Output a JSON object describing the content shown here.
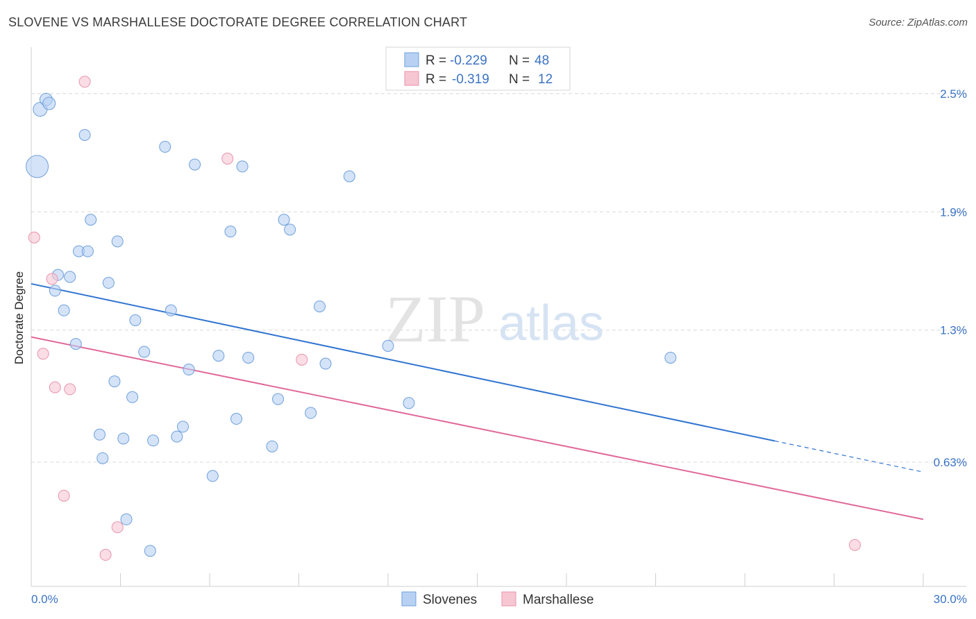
{
  "header": {
    "title": "SLOVENE VS MARSHALLESE DOCTORATE DEGREE CORRELATION CHART",
    "source": "Source: ZipAtlas.com"
  },
  "watermark": {
    "part1": "ZIP",
    "part2": "atlas"
  },
  "legend": {
    "rows": [
      {
        "r_label": "R =",
        "r_value": "-0.229",
        "n_label": "N =",
        "n_value": "48"
      },
      {
        "r_label": "R =",
        "r_value": "-0.319",
        "n_label": "N =",
        "n_value": "12"
      }
    ]
  },
  "colors": {
    "slovenes_fill": "#b8d1f3",
    "slovenes_stroke": "#6e9fdb",
    "slovenes_line": "#2f74d0",
    "marshallese_fill": "#f7c6d3",
    "marshallese_stroke": "#e993ad",
    "marshallese_line": "#e0689a",
    "grid": "#d8d8d8",
    "tick_label": "#3b73c4"
  },
  "chart_data": {
    "type": "scatter",
    "title": "SLOVENE VS MARSHALLESE DOCTORATE DEGREE CORRELATION CHART",
    "xlabel": "",
    "ylabel": "Doctorate Degree",
    "xlim": [
      0,
      30
    ],
    "ylim": [
      0,
      2.7
    ],
    "x_tick_labels": [
      "0.0%",
      "30.0%"
    ],
    "y_ticks": [
      0.63,
      1.3,
      1.9,
      2.5
    ],
    "y_tick_labels": [
      "0.63%",
      "1.3%",
      "1.9%",
      "2.5%"
    ],
    "legend_entries": [
      "Slovenes",
      "Marshallese"
    ],
    "series": [
      {
        "name": "Slovenes",
        "points": [
          [
            0.2,
            2.13,
            16
          ],
          [
            0.3,
            2.42,
            10
          ],
          [
            0.5,
            2.47,
            9
          ],
          [
            0.6,
            2.45,
            9
          ],
          [
            1.8,
            2.29,
            8
          ],
          [
            5.5,
            2.14,
            8
          ],
          [
            4.5,
            2.23,
            8
          ],
          [
            7.1,
            2.13,
            8
          ],
          [
            10.7,
            2.08,
            8
          ],
          [
            2.0,
            1.86,
            8
          ],
          [
            2.9,
            1.75,
            8
          ],
          [
            1.6,
            1.7,
            8
          ],
          [
            1.9,
            1.7,
            8
          ],
          [
            6.7,
            1.8,
            8
          ],
          [
            8.5,
            1.86,
            8
          ],
          [
            8.7,
            1.81,
            8
          ],
          [
            0.9,
            1.58,
            8
          ],
          [
            1.3,
            1.57,
            8
          ],
          [
            2.6,
            1.54,
            8
          ],
          [
            0.8,
            1.5,
            8
          ],
          [
            1.1,
            1.4,
            8
          ],
          [
            4.7,
            1.4,
            8
          ],
          [
            3.5,
            1.35,
            8
          ],
          [
            9.7,
            1.42,
            8
          ],
          [
            1.5,
            1.23,
            8
          ],
          [
            3.8,
            1.19,
            8
          ],
          [
            6.3,
            1.17,
            8
          ],
          [
            7.3,
            1.16,
            8
          ],
          [
            9.9,
            1.13,
            8
          ],
          [
            12.0,
            1.22,
            8
          ],
          [
            21.5,
            1.16,
            8
          ],
          [
            5.3,
            1.1,
            8
          ],
          [
            2.8,
            1.04,
            8
          ],
          [
            3.4,
            0.96,
            8
          ],
          [
            8.3,
            0.95,
            8
          ],
          [
            12.7,
            0.93,
            8
          ],
          [
            9.4,
            0.88,
            8
          ],
          [
            6.9,
            0.85,
            8
          ],
          [
            5.1,
            0.81,
            8
          ],
          [
            2.3,
            0.77,
            8
          ],
          [
            3.1,
            0.75,
            8
          ],
          [
            4.1,
            0.74,
            8
          ],
          [
            4.9,
            0.76,
            8
          ],
          [
            8.1,
            0.71,
            8
          ],
          [
            2.4,
            0.65,
            8
          ],
          [
            6.1,
            0.56,
            8
          ],
          [
            3.2,
            0.34,
            8
          ],
          [
            4.0,
            0.18,
            8
          ]
        ],
        "trend": {
          "x0": 0,
          "y0": 1.535,
          "x1": 25.0,
          "y1": 0.738,
          "dash_to_x": 30.0,
          "dash_to_y": 0.58
        }
      },
      {
        "name": "Marshallese",
        "points": [
          [
            1.8,
            2.56,
            8
          ],
          [
            6.6,
            2.17,
            8
          ],
          [
            0.1,
            1.77,
            8
          ],
          [
            0.7,
            1.56,
            8
          ],
          [
            0.4,
            1.18,
            8
          ],
          [
            9.1,
            1.15,
            8
          ],
          [
            0.8,
            1.01,
            8
          ],
          [
            1.3,
            1.0,
            8
          ],
          [
            1.1,
            0.46,
            8
          ],
          [
            2.9,
            0.3,
            8
          ],
          [
            2.5,
            0.16,
            8
          ],
          [
            27.7,
            0.21,
            8
          ]
        ],
        "trend": {
          "x0": 0,
          "y0": 1.265,
          "x1": 30.0,
          "y1": 0.34
        }
      }
    ]
  }
}
